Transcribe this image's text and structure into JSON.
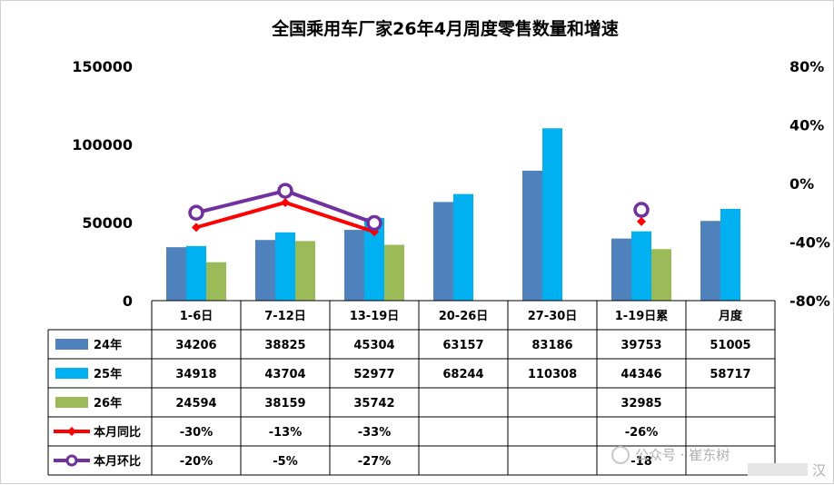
{
  "chart_data": {
    "type": "bar",
    "title": "全国乘用车厂家26年4月周度零售数量和增速",
    "categories": [
      "1-6日",
      "7-12日",
      "13-19日",
      "20-26日",
      "27-30日",
      "1-19日累",
      "月度"
    ],
    "y_axis": {
      "ylim": [
        0,
        150000
      ],
      "ticks": [
        "150000",
        "100000",
        "50000",
        "0"
      ]
    },
    "y2_axis": {
      "ylim": [
        -80,
        80
      ],
      "unit": "%",
      "ticks": [
        "80%",
        "40%",
        "0%",
        "-40%",
        "-80%"
      ]
    },
    "bar_series": [
      {
        "name": "24年",
        "color": "#4f81bd",
        "values": [
          34206,
          38825,
          45304,
          63157,
          83186,
          39753,
          51005
        ],
        "labels": [
          "34206",
          "38825",
          "45304",
          "63157",
          "83186",
          "39753",
          "51005"
        ]
      },
      {
        "name": "25年",
        "color": "#00b0f0",
        "values": [
          34918,
          43704,
          52977,
          68244,
          110308,
          44346,
          58717
        ],
        "labels": [
          "34918",
          "43704",
          "52977",
          "68244",
          "110308",
          "44346",
          "58717"
        ]
      },
      {
        "name": "26年",
        "color": "#9bbb59",
        "values": [
          24594,
          38159,
          35742,
          null,
          null,
          32985,
          null
        ],
        "labels": [
          "24594",
          "38159",
          "35742",
          "",
          "",
          "32985",
          ""
        ]
      }
    ],
    "line_series": [
      {
        "name": "本月同比",
        "color": "#ff0000",
        "marker": "diamond",
        "values": [
          -30,
          -13,
          -33,
          null,
          null,
          -26,
          null
        ],
        "labels": [
          "-30%",
          "-13%",
          "-33%",
          "",
          "",
          "-26%",
          ""
        ]
      },
      {
        "name": "本月环比",
        "color": "#7030a0",
        "marker": "circle",
        "values": [
          -20,
          -5,
          -27,
          null,
          null,
          -18,
          null
        ],
        "labels": [
          "-20%",
          "-5%",
          "-27%",
          "",
          "",
          "-18",
          ""
        ]
      }
    ],
    "grid": false,
    "legend": "data-table"
  },
  "watermark": {
    "text": "公众号 · 崔东树",
    "trail": "汉"
  }
}
